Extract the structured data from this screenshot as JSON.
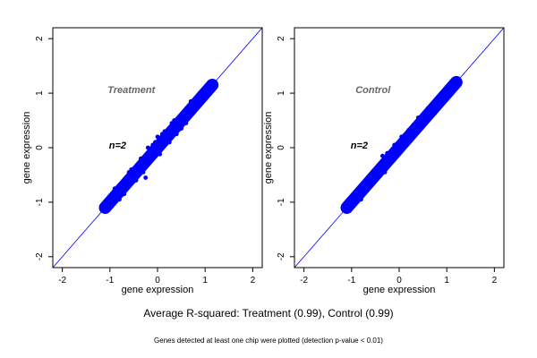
{
  "chart_data": [
    {
      "type": "scatter",
      "title": "",
      "annotation": "Treatment",
      "n_label": "n=2",
      "xlabel": "gene expression",
      "ylabel": "gene expression",
      "xlim": [
        -2.2,
        2.2
      ],
      "ylim": [
        -2.2,
        2.2
      ],
      "xticks": [
        -2,
        -1,
        0,
        1,
        2
      ],
      "yticks": [
        -2,
        -1,
        0,
        1,
        2
      ],
      "grid": false,
      "reference_line": "y = x",
      "point_color": "#0000ff",
      "line_color": "#0000ff",
      "annotation_color": "#666666",
      "series": [
        {
          "x": [
            -1.1,
            -1.05,
            -1.0,
            -0.95,
            -0.9,
            -0.85,
            -0.8,
            -0.75,
            -0.7,
            -0.65,
            -0.6,
            -0.55,
            -0.5,
            -0.45,
            -0.4,
            -0.35,
            -0.3,
            -0.25,
            -0.2,
            -0.15,
            -0.1,
            -0.05,
            0.0,
            0.05,
            0.1,
            0.15,
            0.2,
            0.25,
            0.3,
            0.35,
            0.4,
            0.45,
            0.5,
            0.55,
            0.6,
            0.65,
            0.7,
            0.75,
            0.8,
            0.85,
            0.9,
            0.95,
            1.0,
            1.05,
            1.1,
            1.15,
            -0.9,
            -0.7,
            -0.55,
            -0.45,
            -0.3,
            -0.2,
            -0.05,
            0.1,
            0.25,
            0.35,
            0.5,
            -0.6,
            -0.35,
            0.05,
            -0.8,
            -0.5,
            0.15,
            0.4,
            -0.25,
            0.0,
            -0.1,
            0.6,
            0.3,
            -0.4,
            0.7
          ],
          "y": [
            -1.12,
            -1.05,
            -1.02,
            -0.92,
            -0.88,
            -0.85,
            -0.82,
            -0.73,
            -0.7,
            -0.66,
            -0.6,
            -0.54,
            -0.48,
            -0.46,
            -0.38,
            -0.36,
            -0.3,
            -0.22,
            -0.2,
            -0.14,
            -0.08,
            -0.06,
            0.02,
            0.05,
            0.1,
            0.17,
            0.2,
            0.25,
            0.3,
            0.36,
            0.4,
            0.45,
            0.52,
            0.55,
            0.6,
            0.66,
            0.7,
            0.74,
            0.8,
            0.86,
            0.9,
            0.95,
            1.0,
            1.08,
            1.12,
            1.18,
            -0.75,
            -0.85,
            -0.4,
            -0.6,
            -0.45,
            0.0,
            0.1,
            0.25,
            0.1,
            0.5,
            0.35,
            -0.45,
            -0.2,
            -0.12,
            -0.95,
            -0.62,
            0.3,
            0.25,
            -0.55,
            0.2,
            0.05,
            0.45,
            0.45,
            -0.3,
            0.85
          ]
        }
      ]
    },
    {
      "type": "scatter",
      "title": "",
      "annotation": "Control",
      "n_label": "n=2",
      "xlabel": "gene expression",
      "ylabel": "gene expression",
      "xlim": [
        -2.2,
        2.2
      ],
      "ylim": [
        -2.2,
        2.2
      ],
      "xticks": [
        -2,
        -1,
        0,
        1,
        2
      ],
      "yticks": [
        -2,
        -1,
        0,
        1,
        2
      ],
      "grid": false,
      "reference_line": "y = x",
      "point_color": "#0000ff",
      "line_color": "#0000ff",
      "annotation_color": "#666666",
      "series": [
        {
          "x": [
            -1.1,
            -1.05,
            -1.0,
            -0.95,
            -0.9,
            -0.85,
            -0.8,
            -0.75,
            -0.7,
            -0.65,
            -0.6,
            -0.55,
            -0.5,
            -0.45,
            -0.4,
            -0.35,
            -0.3,
            -0.25,
            -0.2,
            -0.15,
            -0.1,
            -0.05,
            0.0,
            0.05,
            0.1,
            0.15,
            0.2,
            0.25,
            0.3,
            0.35,
            0.4,
            0.45,
            0.5,
            0.55,
            0.6,
            0.65,
            0.7,
            0.75,
            0.8,
            0.85,
            0.9,
            0.95,
            1.0,
            1.05,
            1.1,
            1.15,
            1.2,
            -0.9,
            -0.7,
            -0.55,
            -0.4,
            -0.25,
            -0.1,
            0.05,
            0.2,
            0.35,
            0.5,
            -0.6,
            -0.3,
            0.0,
            -0.8,
            -0.5,
            0.15,
            0.4,
            -0.2,
            -0.35,
            0.6,
            0.3
          ],
          "y": [
            -1.1,
            -1.06,
            -0.98,
            -0.95,
            -0.9,
            -0.84,
            -0.8,
            -0.76,
            -0.7,
            -0.64,
            -0.6,
            -0.56,
            -0.5,
            -0.44,
            -0.4,
            -0.36,
            -0.3,
            -0.24,
            -0.2,
            -0.16,
            -0.1,
            -0.04,
            0.0,
            0.06,
            0.1,
            0.14,
            0.2,
            0.26,
            0.3,
            0.34,
            0.4,
            0.46,
            0.5,
            0.54,
            0.6,
            0.66,
            0.7,
            0.74,
            0.8,
            0.86,
            0.9,
            0.94,
            1.0,
            1.05,
            1.1,
            1.15,
            1.2,
            -0.82,
            -0.62,
            -0.45,
            -0.3,
            -0.1,
            0.05,
            0.2,
            0.32,
            0.45,
            0.6,
            -0.7,
            -0.45,
            -0.1,
            -0.95,
            -0.6,
            0.25,
            0.55,
            -0.3,
            -0.15,
            0.72,
            0.42
          ]
        }
      ]
    }
  ],
  "caption": "Average R-squared: Treatment (0.99), Control (0.99)",
  "footnote": "Genes detected at least one chip were plotted (detection p-value < 0.01)"
}
